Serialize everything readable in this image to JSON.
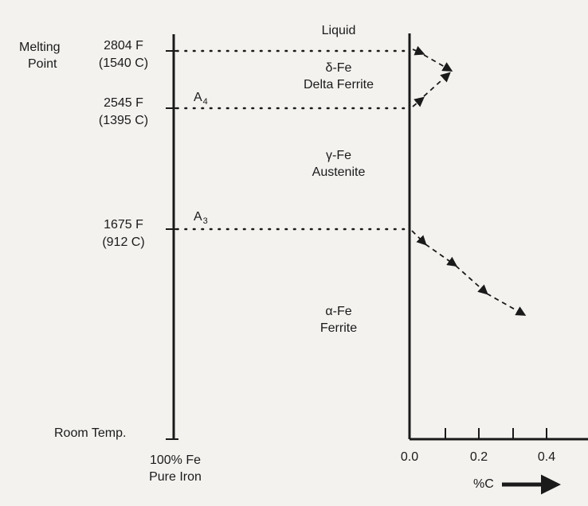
{
  "diagram": {
    "liquid": "Liquid",
    "melting_point": [
      "Melting",
      "Point"
    ],
    "temps": [
      {
        "f": "2804 F",
        "c": "(1540 C)"
      },
      {
        "f": "2545 F",
        "c": "(1395 C)",
        "mark": "A",
        "mark_sub": "4"
      },
      {
        "f": "1675 F",
        "c": "(912 C)",
        "mark": "A",
        "mark_sub": "3"
      }
    ],
    "room_temp": "Room Temp.",
    "phases": {
      "delta": {
        "symbol": "δ-Fe",
        "name": "Delta Ferrite"
      },
      "gamma": {
        "symbol": "γ-Fe",
        "name": "Austenite"
      },
      "alpha": {
        "symbol": "α-Fe",
        "name": "Ferrite"
      }
    },
    "bottom": {
      "line1": "100% Fe",
      "line2": "Pure Iron"
    },
    "x_ticks": [
      "0.0",
      "0.2",
      "0.4"
    ],
    "x_axis_label": "%C"
  }
}
